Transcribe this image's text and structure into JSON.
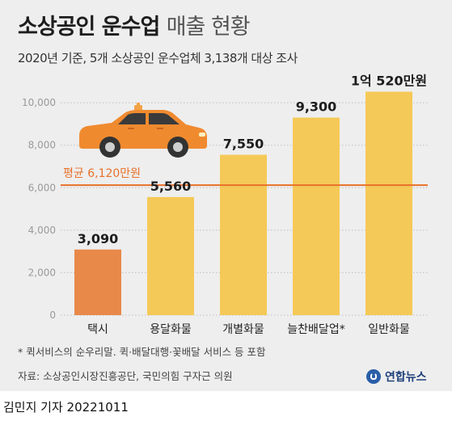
{
  "header": {
    "title_bold": "소상공인 운수업",
    "title_light": "매출 현황",
    "subtitle": "2020년 기준, 5개 소상공인 운수업체 3,138개 대상 조사"
  },
  "chart_data": {
    "type": "bar",
    "categories": [
      "택시",
      "용달화물",
      "개별화물",
      "늘찬배달업*",
      "일반화물"
    ],
    "values": [
      3090,
      5560,
      7550,
      9300,
      10520
    ],
    "value_labels": [
      "3,090",
      "5,560",
      "7,550",
      "9,300",
      "1억 520만원"
    ],
    "ylim": [
      0,
      10500
    ],
    "yticks": [
      0,
      2000,
      4000,
      6000,
      8000,
      10000
    ],
    "ytick_labels": [
      "0",
      "2,000",
      "4,000",
      "6,000",
      "8,000",
      "10,000"
    ],
    "grid": true,
    "reference_line": {
      "value": 6120,
      "label": "평균 6,120만원",
      "color": "#e8702a"
    },
    "colors": {
      "highlight": "#e8894a",
      "bar": "#f5c957",
      "grid": "#bdbdbd"
    },
    "highlighted_index": 0,
    "illustration": "taxi-icon"
  },
  "footnote": "* 퀵서비스의 순우리말. 퀵·배달대행·꽃배달 서비스 등 포함",
  "source": "자료: 소상공인시장진흥공단, 국민의힘 구자근 의원",
  "logo": {
    "text": "연합뉴스",
    "icon": "yonhap-logo-icon"
  },
  "byline": "김민지 기자  20221011"
}
